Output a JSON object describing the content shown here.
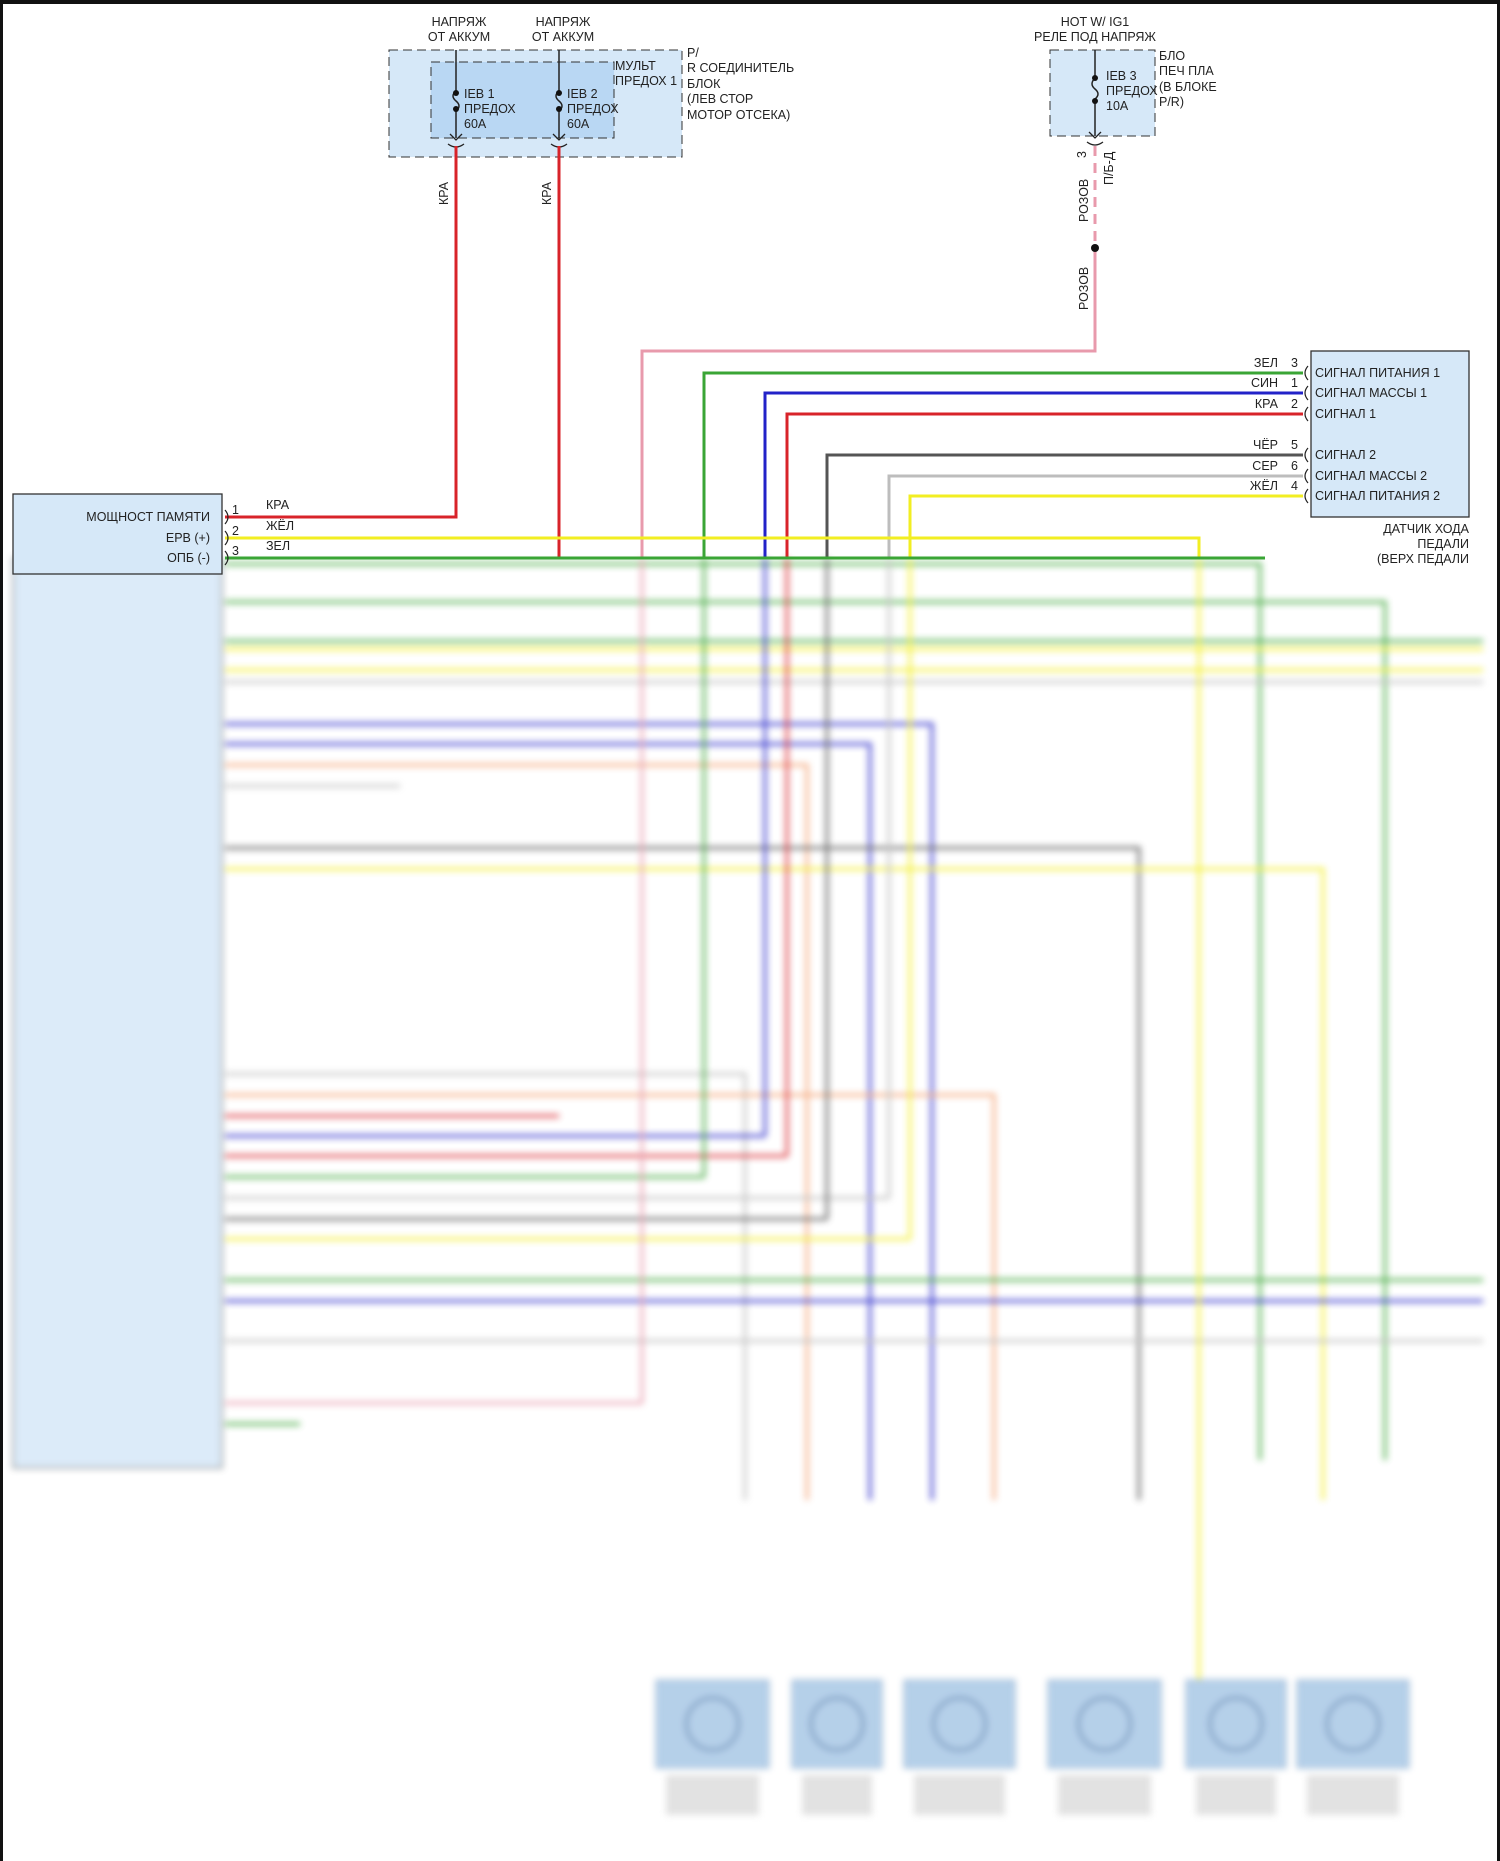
{
  "colors": {
    "red": "#d8232a",
    "yellow": "#f2ee22",
    "green": "#3aa535",
    "blue": "#2222c8",
    "pink": "#e89aac",
    "black": "#555555",
    "gray": "#bdbdbd",
    "orange": "#f3a070",
    "box_fill": "#d6e8f8"
  },
  "fuse_block_1": {
    "supply_1": [
      "НАПРЯЖ",
      "ОТ АККУМ"
    ],
    "supply_2": [
      "НАПРЯЖ",
      "ОТ АККУМ"
    ],
    "inner_label": [
      "МУЛЬТ",
      "ПРЕДОХ 1"
    ],
    "outer_label": [
      "Р/",
      "R СОЕДИНИТЕЛЬ",
      "БЛОК",
      "(ЛЕВ СТОР",
      "МОТОР ОТСЕКА)"
    ],
    "fuse_1": [
      "IEB 1",
      "ПРЕДОХ",
      "60A"
    ],
    "fuse_2": [
      "IEB 2",
      "ПРЕДОХ",
      "60A"
    ],
    "wire_1": "КРА",
    "wire_2": "КРА"
  },
  "fuse_block_2": {
    "supply": [
      "HOT W/ IG1",
      "РЕЛЕ ПОД НАПРЯЖ"
    ],
    "label": [
      "БЛО",
      "ПЕЧ ПЛА",
      "(В БЛОКЕ",
      "P/R)"
    ],
    "fuse": [
      "IEB 3",
      "ПРЕДОХ",
      "10A"
    ],
    "pin": "3",
    "connector": "П/Б-Д",
    "wire_upper": "РОЗОВ",
    "wire_lower": "РОЗОВ"
  },
  "pedal_sensor": {
    "title": [
      "ДАТЧИК ХОДА",
      "ПЕДАЛИ",
      "(ВЕРХ ПЕДАЛИ"
    ],
    "pins": [
      {
        "wire": "ЗЕЛ",
        "pin": "3",
        "signal": "СИГНАЛ ПИТАНИЯ 1"
      },
      {
        "wire": "СИН",
        "pin": "1",
        "signal": "СИГНАЛ МАССЫ 1"
      },
      {
        "wire": "КРА",
        "pin": "2",
        "signal": "СИГНАЛ 1"
      },
      {
        "wire": "ЧЁР",
        "pin": "5",
        "signal": "СИГНАЛ 2"
      },
      {
        "wire": "СЕР",
        "pin": "6",
        "signal": "СИГНАЛ МАССЫ 2"
      },
      {
        "wire": "ЖЁЛ",
        "pin": "4",
        "signal": "СИГНАЛ ПИТАНИЯ 2"
      }
    ]
  },
  "control_unit": {
    "pins": [
      {
        "pin": "1",
        "label": "МОЩНОСТ ПАМЯТИ",
        "wire": "КРА"
      },
      {
        "pin": "2",
        "label": "ЕРВ (+)",
        "wire": "ЖЁЛ"
      },
      {
        "pin": "3",
        "label": "ОПБ (-)",
        "wire": "ЗЕЛ"
      }
    ]
  }
}
